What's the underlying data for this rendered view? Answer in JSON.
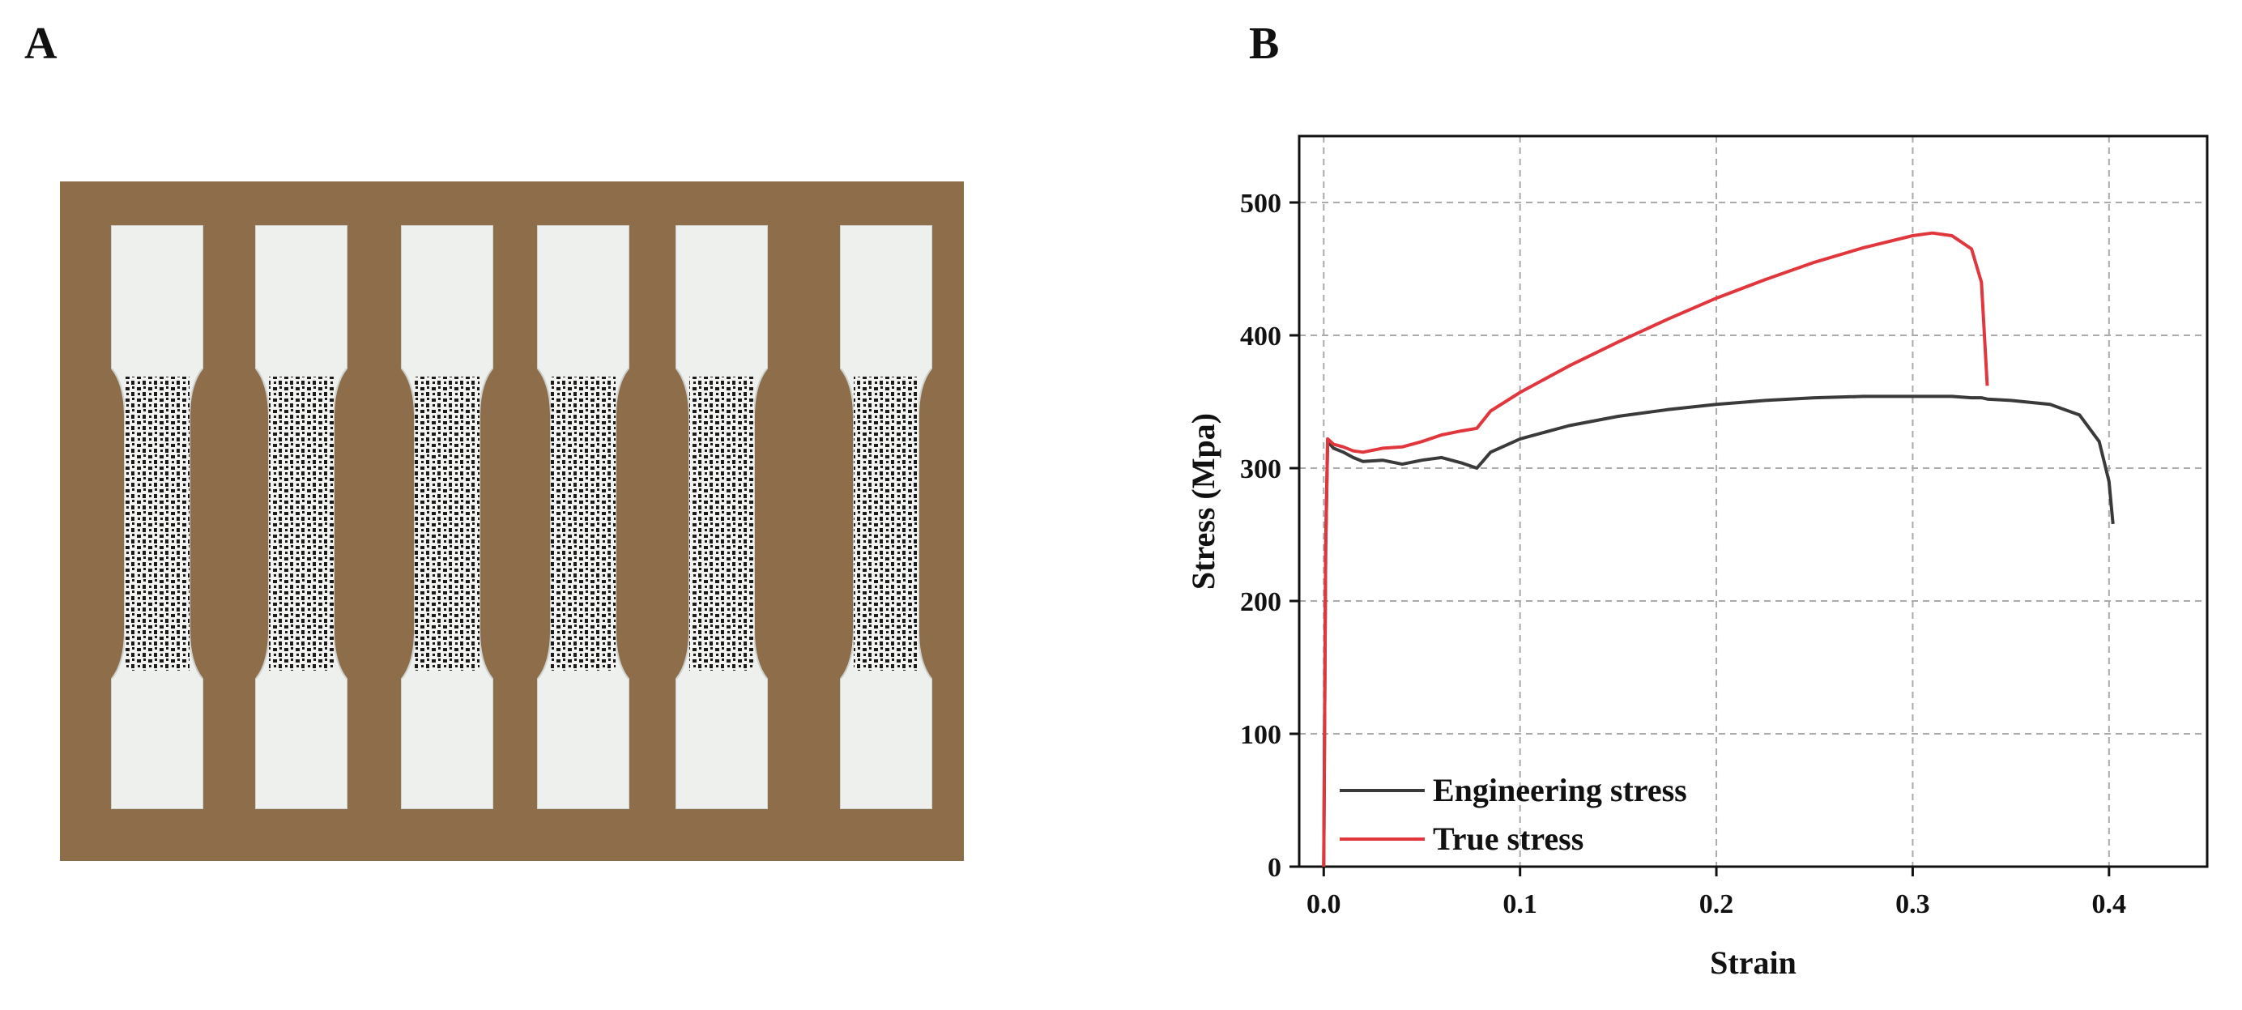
{
  "panel_labels": [
    "A",
    "B"
  ],
  "chart_data": {
    "type": "line",
    "x_label": "Strain",
    "y_label": "Stress (Mpa)",
    "xlim": [
      -0.0125,
      0.45
    ],
    "ylim": [
      0,
      550
    ],
    "xticks": [
      {
        "value": 0,
        "label": "0.0"
      },
      0.1,
      0.2,
      0.3,
      0.4
    ],
    "yticks": [
      0,
      100,
      200,
      300,
      400,
      500
    ],
    "grid": true,
    "legend": "lower left",
    "x": [
      0,
      0.001,
      0.002,
      0.005,
      0.01,
      0.015,
      0.02,
      0.03,
      0.04,
      0.05,
      0.06,
      0.07,
      0.078,
      0.085,
      0.1,
      0.125,
      0.15,
      0.175,
      0.2,
      0.225,
      0.25,
      0.275,
      0.3,
      0.31,
      0.32,
      0.33,
      0.335,
      0.338,
      0.35,
      0.37,
      0.385,
      0.395,
      0.4,
      0.402
    ],
    "series": [
      {
        "name": "Engineering stress",
        "color": "#3a3a3a",
        "values": [
          0,
          240,
          320,
          315,
          312,
          308,
          305,
          306,
          303,
          306,
          308,
          304,
          300,
          312,
          322,
          332,
          339,
          344,
          348,
          351,
          353,
          354,
          354,
          354,
          354,
          353,
          353,
          352,
          351,
          348,
          340,
          320,
          290,
          258
        ]
      },
      {
        "name": "True stress",
        "color": "#e0363c",
        "values": [
          0,
          240,
          322,
          318,
          316,
          313,
          312,
          315,
          316,
          320,
          325,
          328,
          330,
          343,
          357,
          377,
          395,
          412,
          428,
          442,
          455,
          466,
          475,
          477,
          475,
          465,
          440,
          362,
          null,
          null,
          null,
          null,
          null,
          null
        ]
      }
    ]
  }
}
